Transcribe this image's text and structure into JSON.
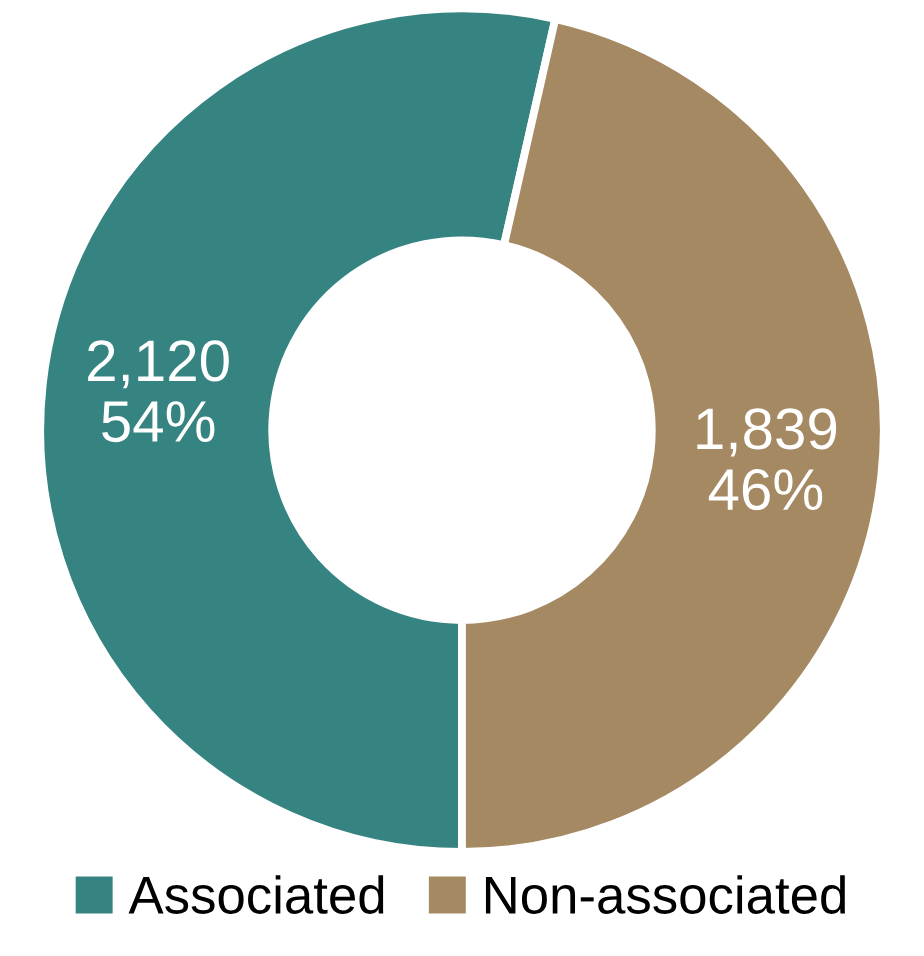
{
  "chart_data": {
    "type": "donut",
    "categories": [
      "Associated",
      "Non-associated"
    ],
    "values": [
      2120,
      1839
    ],
    "colors": [
      "#358482",
      "#a58963"
    ],
    "value_labels": [
      "2,120\n54%",
      "1,839\n46%"
    ],
    "legend": "bottom"
  }
}
